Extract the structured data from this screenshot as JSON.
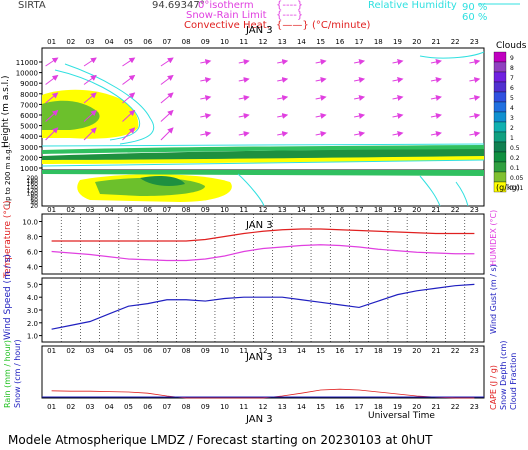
{
  "header": {
    "site": "SIRTA",
    "coord": "94.69347°",
    "legend_isotherm": "0°isotherm",
    "legend_snow": "Snow-Rain Limit",
    "legend_convective": "Convective Heat.",
    "legend_convective_unit": "(°C/minute)",
    "legend_rh": "Relative Humidity",
    "rh_90": "90 %",
    "rh_60": "60 %"
  },
  "footer": {
    "universal_time": "Universal Time",
    "title": "Modele Atmospherique LMDZ / Forecast starting on 20230103 at 0hUT"
  },
  "colors": {
    "wind_arrow": "#e040e0",
    "rh_line": "#30e0e0",
    "cloud_yellow": "#ffff00",
    "cloud_green": "#6cc02c",
    "cloud_dark_green": "#1e9040",
    "temperature": "#e02020",
    "humidex": "#e040e0",
    "wind": "#2020c0",
    "rain": "#20c020",
    "snow": "#2020c0",
    "cape": "#e02020"
  },
  "chart_data": [
    {
      "type": "heatmap",
      "title": "",
      "xlabel": "JAN 3",
      "x_ticks": [
        "01",
        "02",
        "03",
        "04",
        "05",
        "06",
        "07",
        "08",
        "09",
        "10",
        "11",
        "12",
        "13",
        "14",
        "15",
        "16",
        "17",
        "18",
        "19",
        "20",
        "21",
        "22",
        "23"
      ],
      "ylabel_upper": "Height (m a.s.l.)",
      "y_ticks_upper": [
        "11000",
        "10000",
        "9000",
        "8000",
        "7000",
        "6000",
        "5000",
        "4000",
        "3000",
        "2000",
        "1000"
      ],
      "ylabel_lower": "Up to 200 m a.g.l.",
      "y_ticks_lower": [
        "1000",
        "200",
        "180",
        "160",
        "140",
        "120",
        "100",
        "80",
        "60",
        "40",
        "20"
      ],
      "colorbar_title": "Clouds",
      "colorbar_unit": "(g/kg)",
      "colorbar_levels": [
        "9",
        "8",
        "7",
        "6",
        "5",
        "4",
        "3",
        "2",
        "1",
        "0.5",
        "0.2",
        "0.1",
        "0.05",
        "0.01"
      ],
      "colorbar_colors": [
        "#c000c0",
        "#9040c0",
        "#7020e0",
        "#5030d0",
        "#3050e0",
        "#2070e0",
        "#1090d0",
        "#10b0b0",
        "#10a080",
        "#108050",
        "#109040",
        "#30a040",
        "#80c030",
        "#ffff00"
      ]
    },
    {
      "type": "line",
      "title": "",
      "xlabel": "",
      "ylabel": "Temperature (°C)",
      "ylabel_right": "HUMIDEX (°C)",
      "y_ticks": [
        "10.0",
        "8.0",
        "6.0",
        "4.0"
      ],
      "ylim": [
        3,
        11
      ],
      "x": [
        1,
        2,
        3,
        4,
        5,
        6,
        7,
        8,
        9,
        10,
        11,
        12,
        13,
        14,
        15,
        16,
        17,
        18,
        19,
        20,
        21,
        22,
        23
      ],
      "series": [
        {
          "values": [
            7.4,
            7.4,
            7.4,
            7.4,
            7.4,
            7.4,
            7.4,
            7.4,
            7.6,
            8.0,
            8.4,
            8.7,
            8.9,
            9.0,
            9.0,
            8.9,
            8.8,
            8.7,
            8.6,
            8.5,
            8.4,
            8.4,
            8.4
          ]
        },
        {
          "values": [
            6.0,
            5.8,
            5.6,
            5.3,
            5.0,
            4.9,
            4.8,
            4.8,
            5.0,
            5.4,
            6.0,
            6.4,
            6.6,
            6.8,
            6.9,
            6.8,
            6.6,
            6.3,
            6.1,
            5.9,
            5.8,
            5.7,
            5.7
          ]
        }
      ]
    },
    {
      "type": "line",
      "title": "",
      "xlabel": "",
      "ylabel": "Wind Speed (m / s)",
      "ylabel_right": "Wind Gust (m / s)",
      "y_ticks": [
        "5.0",
        "4.0",
        "3.0",
        "2.0",
        "1.0"
      ],
      "ylim": [
        0.5,
        5.5
      ],
      "x": [
        1,
        2,
        3,
        4,
        5,
        6,
        7,
        8,
        9,
        10,
        11,
        12,
        13,
        14,
        15,
        16,
        17,
        18,
        19,
        20,
        21,
        22,
        23
      ],
      "series": [
        {
          "values": [
            1.5,
            1.8,
            2.1,
            2.7,
            3.3,
            3.5,
            3.8,
            3.8,
            3.7,
            3.9,
            4.0,
            4.0,
            4.0,
            3.8,
            3.6,
            3.4,
            3.2,
            3.7,
            4.2,
            4.5,
            4.7,
            4.9,
            5.0
          ]
        }
      ]
    },
    {
      "type": "line",
      "title": "",
      "xlabel": "JAN 3",
      "ylabel_left_1": "Rain (mm / hour)",
      "ylabel_left_2": "Snow (cm / hour)",
      "ylabel_right_1": "CAPE (J / g)",
      "ylabel_right_2": "Snow Depth (cm)",
      "ylabel_right_3": "Cloud Fraction",
      "x": [
        1,
        2,
        3,
        4,
        5,
        6,
        7,
        8,
        9,
        10,
        11,
        12,
        13,
        14,
        15,
        16,
        17,
        18,
        19,
        20,
        21,
        22,
        23
      ],
      "series": [
        {
          "values": [
            0.18,
            0.17,
            0.17,
            0.16,
            0.15,
            0.12,
            0.05,
            0.0,
            0.0,
            0.0,
            0.0,
            0.0,
            0.05,
            0.12,
            0.2,
            0.22,
            0.2,
            0.15,
            0.1,
            0.05,
            0.02,
            0.0,
            0.0
          ]
        }
      ]
    }
  ]
}
